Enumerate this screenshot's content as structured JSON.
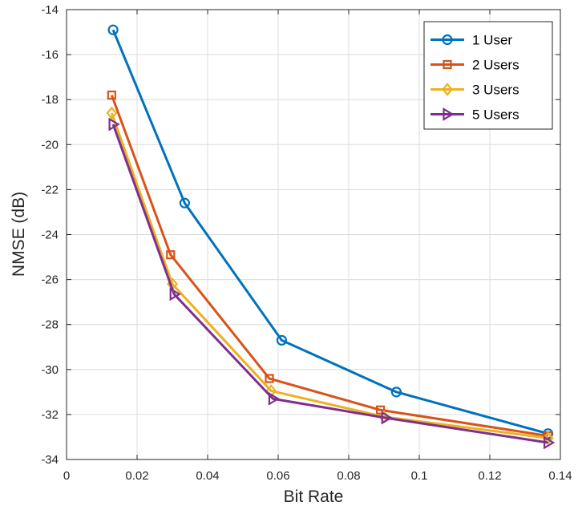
{
  "chart_data": {
    "type": "line",
    "title": "",
    "xlabel": "Bit Rate",
    "ylabel": "NMSE (dB)",
    "xlim": [
      0,
      0.14
    ],
    "ylim": [
      -34,
      -14
    ],
    "xticks": [
      0,
      0.02,
      0.04,
      0.06,
      0.08,
      0.1,
      0.12,
      0.14
    ],
    "xtick_labels": [
      "0",
      "0.02",
      "0.04",
      "0.06",
      "0.08",
      "0.1",
      "0.12",
      "0.14"
    ],
    "yticks": [
      -34,
      -32,
      -30,
      -28,
      -26,
      -24,
      -22,
      -20,
      -18,
      -16,
      -14
    ],
    "ytick_labels": [
      "-34",
      "-32",
      "-30",
      "-28",
      "-26",
      "-24",
      "-22",
      "-20",
      "-18",
      "-16",
      "-14"
    ],
    "grid": true,
    "legend_position": "top-right",
    "series": [
      {
        "name": "1 User",
        "color": "#0072BD",
        "marker": "circle",
        "x": [
          0.0132,
          0.0335,
          0.061,
          0.0935,
          0.1365
        ],
        "y": [
          -14.9,
          -22.6,
          -28.7,
          -31.0,
          -32.85
        ]
      },
      {
        "name": "2 Users",
        "color": "#D95319",
        "marker": "square",
        "x": [
          0.0128,
          0.0295,
          0.0575,
          0.089,
          0.1365
        ],
        "y": [
          -17.8,
          -24.9,
          -30.4,
          -31.8,
          -32.95
        ]
      },
      {
        "name": "3 Users",
        "color": "#EDB120",
        "marker": "diamond",
        "x": [
          0.0128,
          0.03,
          0.058,
          0.09,
          0.1365
        ],
        "y": [
          -18.6,
          -26.2,
          -30.95,
          -32.1,
          -33.05
        ]
      },
      {
        "name": "5 Users",
        "color": "#7E2F8E",
        "marker": "triangle-right",
        "x": [
          0.0132,
          0.0305,
          0.0585,
          0.0905,
          0.1365
        ],
        "y": [
          -19.1,
          -26.65,
          -31.3,
          -32.15,
          -33.25
        ]
      }
    ]
  }
}
